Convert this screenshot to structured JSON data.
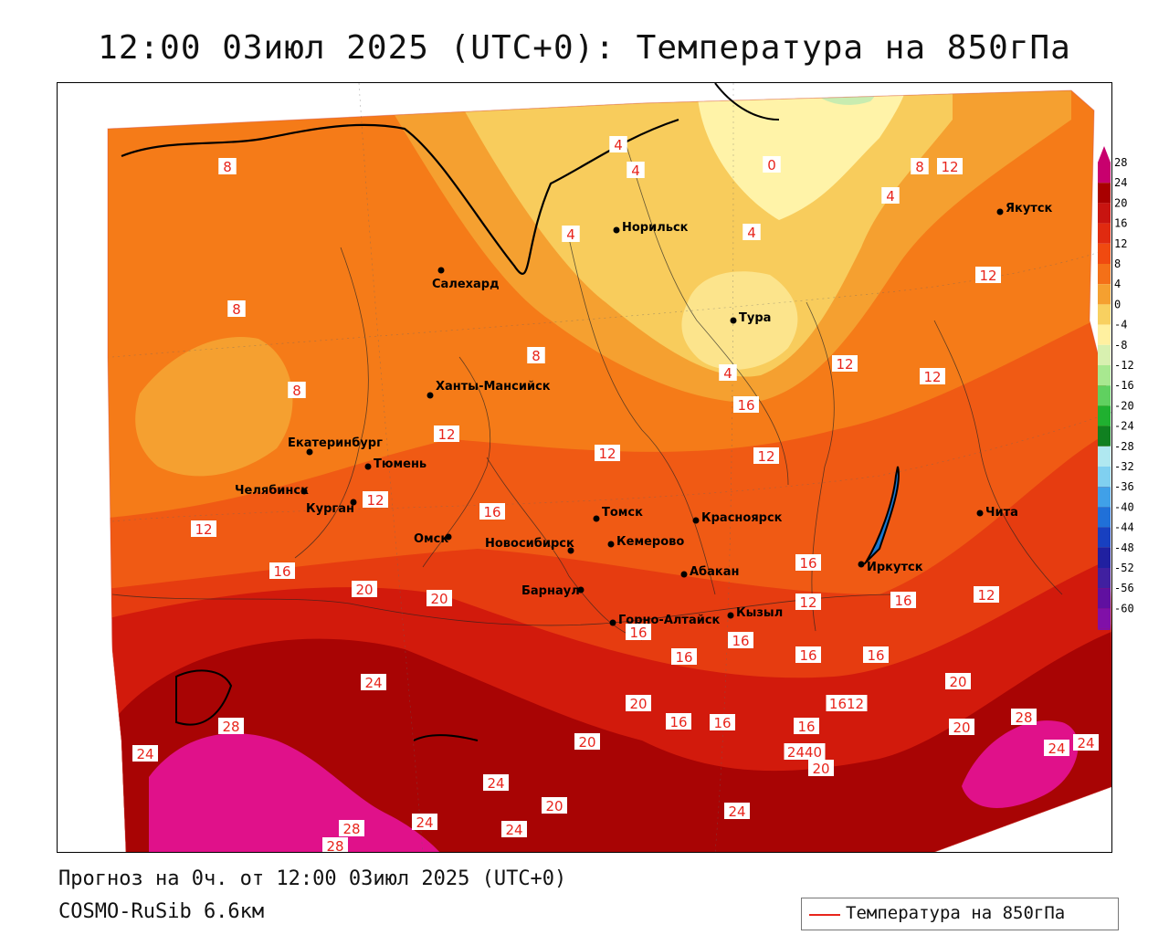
{
  "title": "12:00 03июл 2025 (UTC+0): Температура на 850гПа",
  "footer": {
    "forecast": "Прогноз на 0ч. от 12:00 03июл 2025 (UTC+0)",
    "model": "COSMO-RuSib 6.6км"
  },
  "legend": {
    "label": "Температура на 850гПа",
    "line_color": "#e8251c"
  },
  "colorbar": {
    "ticks": [
      "28",
      "24",
      "20",
      "16",
      "12",
      "8",
      "4",
      "0",
      "-4",
      "-8",
      "-12",
      "-16",
      "-20",
      "-24",
      "-28",
      "-32",
      "-36",
      "-40",
      "-44",
      "-48",
      "-52",
      "-56",
      "-60"
    ],
    "colors": [
      "#c8006e",
      "#a80000",
      "#c81410",
      "#e02a10",
      "#f04a10",
      "#f47018",
      "#f5a030",
      "#f8d060",
      "#fff0a0",
      "#d8f0b0",
      "#a8e890",
      "#60d060",
      "#20b030",
      "#108020",
      "#b0e8f0",
      "#80d0f0",
      "#40a0e8",
      "#2070d8",
      "#1840c0",
      "#2020a0",
      "#4020a0",
      "#6010a0",
      "#8010a8"
    ]
  },
  "cities": [
    {
      "name": "Якутск"
    },
    {
      "name": "Норильск"
    },
    {
      "name": "Салехард"
    },
    {
      "name": "Тура"
    },
    {
      "name": "Ханты-Мансийск"
    },
    {
      "name": "Екатеринбург"
    },
    {
      "name": "Тюмень"
    },
    {
      "name": "Челябинск"
    },
    {
      "name": "Курган"
    },
    {
      "name": "Омск"
    },
    {
      "name": "Томск"
    },
    {
      "name": "Красноярск"
    },
    {
      "name": "Новосибирск"
    },
    {
      "name": "Кемерово"
    },
    {
      "name": "Абакан"
    },
    {
      "name": "Барнаул"
    },
    {
      "name": "Горно-Алтайск"
    },
    {
      "name": "Кызыл"
    },
    {
      "name": "Иркутск"
    },
    {
      "name": "Чита"
    }
  ],
  "contour_labels": [
    "8",
    "8",
    "8",
    "4",
    "4",
    "4",
    "0",
    "8",
    "12",
    "4",
    "4",
    "4",
    "8",
    "12",
    "12",
    "12",
    "12",
    "12",
    "12",
    "12",
    "12",
    "16",
    "16",
    "16",
    "16",
    "20",
    "20",
    "16",
    "16",
    "16",
    "16",
    "16",
    "12",
    "16",
    "20",
    "16",
    "1612",
    "20",
    "24",
    "28",
    "24",
    "20",
    "16",
    "16",
    "2440",
    "20",
    "24",
    "24",
    "28",
    "24",
    "24",
    "20",
    "24",
    "24",
    "28",
    "28",
    "20",
    "12",
    "16"
  ]
}
